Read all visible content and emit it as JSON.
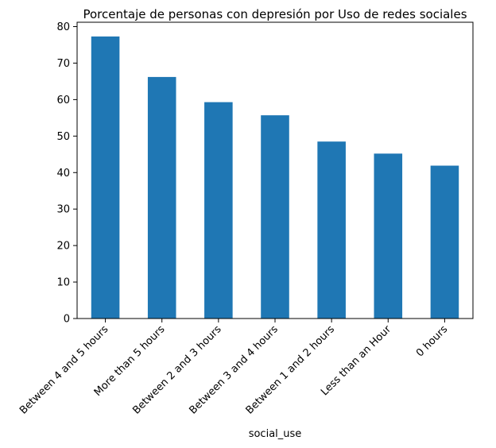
{
  "chart_data": {
    "type": "bar",
    "title": "Porcentaje de personas con depresión por Uso de redes sociales",
    "xlabel": "social_use",
    "ylabel": "",
    "categories": [
      "Between 4 and 5 hours",
      "More than 5 hours",
      "Between 2 and 3 hours",
      "Between 3 and 4 hours",
      "Between 1 and 2 hours",
      "Less than an Hour",
      "0 hours"
    ],
    "values": [
      77.3,
      66.2,
      59.3,
      55.7,
      48.5,
      45.2,
      41.9
    ],
    "ylim": [
      0,
      81.2
    ],
    "yticks": [
      0,
      10,
      20,
      30,
      40,
      50,
      60,
      70,
      80
    ],
    "grid": false,
    "legend": "none",
    "colors": {
      "bar": "#1f77b4",
      "axes": "#000000",
      "background": "#ffffff"
    }
  }
}
